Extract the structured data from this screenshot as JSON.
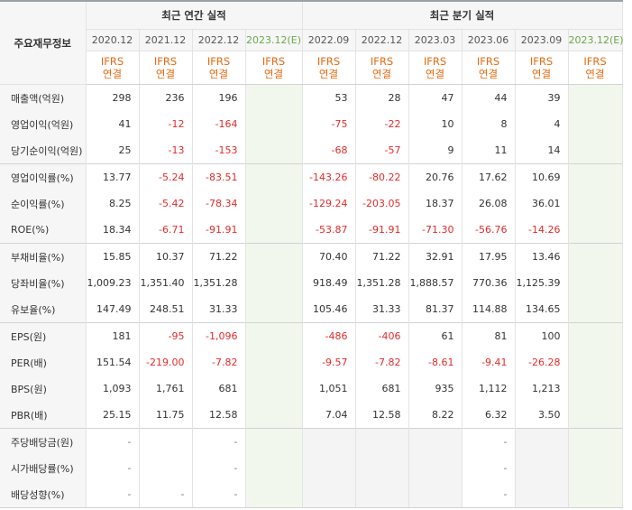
{
  "corner_label": "주요재무정보",
  "groups": {
    "annual": "최근 연간 실적",
    "quarterly": "최근 분기 실적"
  },
  "periods": [
    "2020.12",
    "2021.12",
    "2022.12",
    "2023.12(E)",
    "2022.09",
    "2022.12",
    "2023.03",
    "2023.06",
    "2023.09",
    "2023.12(E)"
  ],
  "basis": {
    "line1": "IFRS",
    "line2": "연결"
  },
  "rows": [
    {
      "label": "매출액(억원)",
      "values": [
        "298",
        "236",
        "196",
        "",
        "53",
        "28",
        "47",
        "44",
        "39",
        ""
      ]
    },
    {
      "label": "영업이익(억원)",
      "values": [
        "41",
        "-12",
        "-164",
        "",
        "-75",
        "-22",
        "10",
        "8",
        "4",
        ""
      ]
    },
    {
      "label": "당기순이익(억원)",
      "values": [
        "25",
        "-13",
        "-153",
        "",
        "-68",
        "-57",
        "9",
        "11",
        "14",
        ""
      ]
    },
    {
      "label": "영업이익률(%)",
      "values": [
        "13.77",
        "-5.24",
        "-83.51",
        "",
        "-143.26",
        "-80.22",
        "20.76",
        "17.62",
        "10.69",
        ""
      ]
    },
    {
      "label": "순이익률(%)",
      "values": [
        "8.25",
        "-5.42",
        "-78.34",
        "",
        "-129.24",
        "-203.05",
        "18.37",
        "26.08",
        "36.01",
        ""
      ]
    },
    {
      "label": "ROE(%)",
      "values": [
        "18.34",
        "-6.71",
        "-91.91",
        "",
        "-53.87",
        "-91.91",
        "-71.30",
        "-56.76",
        "-14.26",
        ""
      ]
    },
    {
      "label": "부채비율(%)",
      "values": [
        "15.85",
        "10.37",
        "71.22",
        "",
        "70.40",
        "71.22",
        "32.91",
        "17.95",
        "13.46",
        ""
      ]
    },
    {
      "label": "당좌비율(%)",
      "values": [
        "1,009.23",
        "1,351.40",
        "1,351.28",
        "",
        "918.49",
        "1,351.28",
        "1,888.57",
        "770.36",
        "1,125.39",
        ""
      ]
    },
    {
      "label": "유보율(%)",
      "values": [
        "147.49",
        "248.51",
        "31.33",
        "",
        "105.46",
        "31.33",
        "81.37",
        "114.88",
        "134.65",
        ""
      ]
    },
    {
      "label": "EPS(원)",
      "values": [
        "181",
        "-95",
        "-1,096",
        "",
        "-486",
        "-406",
        "61",
        "81",
        "100",
        ""
      ]
    },
    {
      "label": "PER(배)",
      "values": [
        "151.54",
        "-219.00",
        "-7.82",
        "",
        "-9.57",
        "-7.82",
        "-8.61",
        "-9.41",
        "-26.28",
        ""
      ]
    },
    {
      "label": "BPS(원)",
      "values": [
        "1,093",
        "1,761",
        "681",
        "",
        "1,051",
        "681",
        "935",
        "1,112",
        "1,213",
        ""
      ]
    },
    {
      "label": "PBR(배)",
      "values": [
        "25.15",
        "11.75",
        "12.58",
        "",
        "7.04",
        "12.58",
        "8.22",
        "6.32",
        "3.50",
        ""
      ]
    },
    {
      "label": "주당배당금(원)",
      "values": [
        "-",
        "",
        "-",
        "",
        "",
        "",
        "",
        "-",
        "",
        ""
      ]
    },
    {
      "label": "시가배당률(%)",
      "values": [
        "-",
        "",
        "-",
        "",
        "",
        "",
        "",
        "-",
        "",
        ""
      ]
    },
    {
      "label": "배당성향(%)",
      "values": [
        "-",
        "-",
        "-",
        "",
        "",
        "",
        "",
        "-",
        "",
        ""
      ]
    }
  ]
}
